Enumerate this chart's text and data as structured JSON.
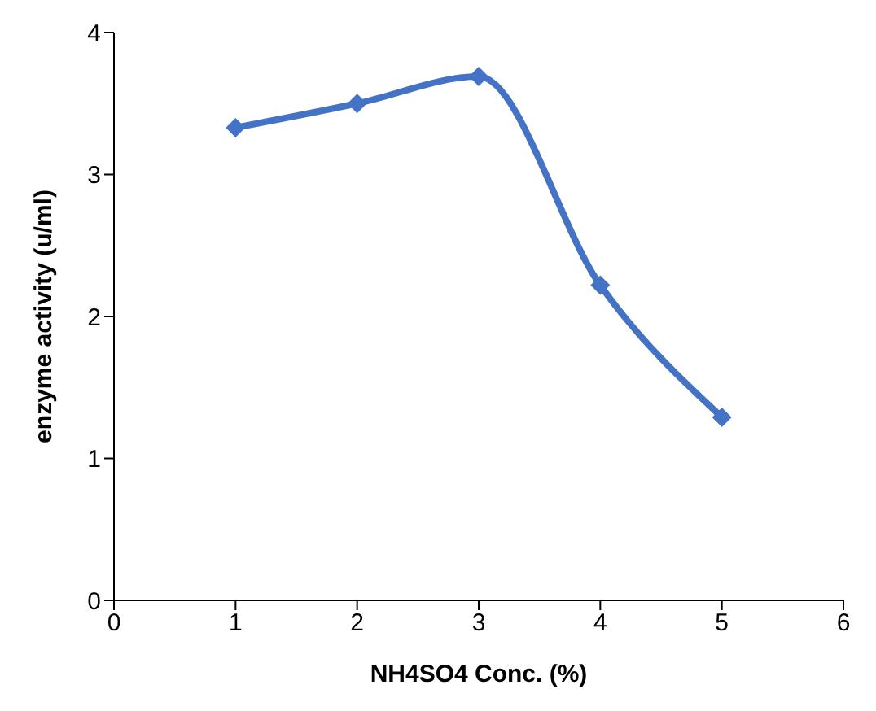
{
  "chart_data": {
    "type": "line",
    "xlabel": "NH4SO4 Conc. (%)",
    "ylabel": "enzyme activity (u/ml)",
    "x": [
      1,
      2,
      3,
      4,
      5
    ],
    "series": [
      {
        "color": "#4472c4",
        "values": [
          3.33,
          3.5,
          3.69,
          2.22,
          1.29
        ]
      }
    ],
    "xlim": [
      0,
      6
    ],
    "xticks": [
      0,
      1,
      2,
      3,
      4,
      5,
      6
    ],
    "ylim": [
      0,
      4
    ],
    "yticks": [
      0,
      1,
      2,
      3,
      4
    ],
    "marker": "diamond",
    "line_style": "solid"
  }
}
